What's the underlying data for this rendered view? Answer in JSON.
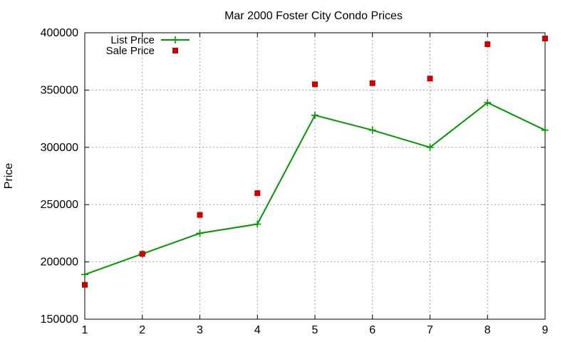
{
  "chart_data": {
    "type": "line",
    "title": "Mar 2000 Foster City Condo Prices",
    "xlabel": "",
    "ylabel": "Price",
    "x": [
      1,
      2,
      3,
      4,
      5,
      6,
      7,
      8,
      9
    ],
    "xlim": [
      1,
      9
    ],
    "ylim": [
      150000,
      400000
    ],
    "x_ticks": [
      "1",
      "2",
      "3",
      "4",
      "5",
      "6",
      "7",
      "8",
      "9"
    ],
    "y_ticks": [
      "150000",
      "200000",
      "250000",
      "300000",
      "350000",
      "400000"
    ],
    "grid": true,
    "legend_position": "top-left",
    "series": [
      {
        "name": "List Price",
        "style": "line-with-plus-markers",
        "color": "#009900",
        "values": [
          189000,
          207000,
          225000,
          233000,
          328000,
          315000,
          300000,
          339000,
          315000
        ]
      },
      {
        "name": "Sale Price",
        "style": "square-markers",
        "color": "#cc0000",
        "values": [
          180000,
          207000,
          241000,
          260000,
          355000,
          356000,
          360000,
          390000,
          395000
        ]
      }
    ]
  }
}
